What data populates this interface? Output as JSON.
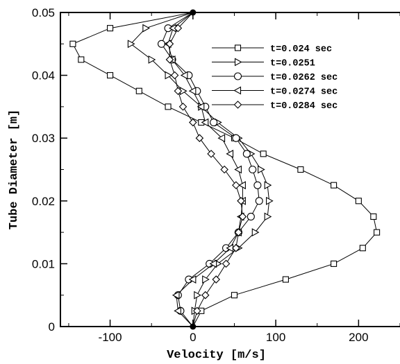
{
  "chart_data": {
    "type": "line",
    "xlabel": "Velocity [m/s]",
    "ylabel": "Tube Diameter [m]",
    "xlim": [
      -160,
      250
    ],
    "ylim": [
      0,
      0.05
    ],
    "x_ticks": [
      -100,
      0,
      100,
      200
    ],
    "y_ticks": [
      0,
      0.01,
      0.02,
      0.03,
      0.04,
      0.05
    ],
    "x_tick_labels": [
      "-100",
      "0",
      "100",
      "200"
    ],
    "y_tick_labels": [
      "0",
      "0.01",
      "0.02",
      "0.03",
      "0.04",
      "0.05"
    ],
    "grid": false,
    "legend_position": "upper-right",
    "series": [
      {
        "name": "t=0.024 sec",
        "marker": "square",
        "points": [
          [
            0,
            0.05
          ],
          [
            -100,
            0.0475
          ],
          [
            -145,
            0.045
          ],
          [
            -135,
            0.0425
          ],
          [
            -100,
            0.04
          ],
          [
            -65,
            0.0375
          ],
          [
            -30,
            0.035
          ],
          [
            10,
            0.0325
          ],
          [
            50,
            0.03
          ],
          [
            85,
            0.0275
          ],
          [
            130,
            0.025
          ],
          [
            170,
            0.0225
          ],
          [
            200,
            0.02
          ],
          [
            218,
            0.0175
          ],
          [
            222,
            0.015
          ],
          [
            205,
            0.0125
          ],
          [
            170,
            0.01
          ],
          [
            112,
            0.0075
          ],
          [
            50,
            0.005
          ],
          [
            10,
            0.0025
          ],
          [
            0,
            0
          ]
        ]
      },
      {
        "name": "t=0.0251",
        "marker": "triangle-right",
        "points": [
          [
            0,
            0.05
          ],
          [
            -57,
            0.0475
          ],
          [
            -75,
            0.045
          ],
          [
            -50,
            0.0425
          ],
          [
            -30,
            0.04
          ],
          [
            -12,
            0.0375
          ],
          [
            10,
            0.035
          ],
          [
            30,
            0.0325
          ],
          [
            55,
            0.03
          ],
          [
            70,
            0.0275
          ],
          [
            82,
            0.025
          ],
          [
            90,
            0.0225
          ],
          [
            92,
            0.02
          ],
          [
            90,
            0.0175
          ],
          [
            75,
            0.015
          ],
          [
            55,
            0.0125
          ],
          [
            30,
            0.01
          ],
          [
            15,
            0.0075
          ],
          [
            5,
            0.005
          ],
          [
            2,
            0.0025
          ],
          [
            0,
            0
          ]
        ]
      },
      {
        "name": "t=0.0262 sec",
        "marker": "circle",
        "points": [
          [
            0,
            0.05
          ],
          [
            -30,
            0.0475
          ],
          [
            -38,
            0.045
          ],
          [
            -25,
            0.0425
          ],
          [
            -5,
            0.04
          ],
          [
            5,
            0.0375
          ],
          [
            15,
            0.035
          ],
          [
            25,
            0.0325
          ],
          [
            52,
            0.03
          ],
          [
            65,
            0.0275
          ],
          [
            72,
            0.025
          ],
          [
            78,
            0.0225
          ],
          [
            80,
            0.02
          ],
          [
            70,
            0.0175
          ],
          [
            55,
            0.015
          ],
          [
            40,
            0.0125
          ],
          [
            20,
            0.01
          ],
          [
            -5,
            0.0075
          ],
          [
            -18,
            0.005
          ],
          [
            -15,
            0.0025
          ],
          [
            0,
            0
          ]
        ]
      },
      {
        "name": "t=0.0274 sec",
        "marker": "triangle-left",
        "points": [
          [
            0,
            0.05
          ],
          [
            -24,
            0.0475
          ],
          [
            -30,
            0.045
          ],
          [
            -25,
            0.0425
          ],
          [
            -10,
            0.04
          ],
          [
            0,
            0.0375
          ],
          [
            10,
            0.035
          ],
          [
            15,
            0.0325
          ],
          [
            35,
            0.03
          ],
          [
            45,
            0.0275
          ],
          [
            55,
            0.025
          ],
          [
            60,
            0.0225
          ],
          [
            60,
            0.02
          ],
          [
            58,
            0.0175
          ],
          [
            55,
            0.015
          ],
          [
            45,
            0.0125
          ],
          [
            25,
            0.01
          ],
          [
            0,
            0.0075
          ],
          [
            -20,
            0.005
          ],
          [
            -18,
            0.0025
          ],
          [
            0,
            0
          ]
        ]
      },
      {
        "name": "t=0.0284 sec",
        "marker": "diamond",
        "points": [
          [
            0,
            0.05
          ],
          [
            -18,
            0.0475
          ],
          [
            -28,
            0.045
          ],
          [
            -28,
            0.0425
          ],
          [
            -22,
            0.04
          ],
          [
            -18,
            0.0375
          ],
          [
            -12,
            0.035
          ],
          [
            0,
            0.0325
          ],
          [
            8,
            0.03
          ],
          [
            22,
            0.0275
          ],
          [
            38,
            0.025
          ],
          [
            52,
            0.0225
          ],
          [
            58,
            0.02
          ],
          [
            60,
            0.0175
          ],
          [
            55,
            0.015
          ],
          [
            52,
            0.0125
          ],
          [
            40,
            0.01
          ],
          [
            28,
            0.0075
          ],
          [
            15,
            0.005
          ],
          [
            5,
            0.0025
          ],
          [
            0,
            0
          ]
        ]
      }
    ]
  }
}
